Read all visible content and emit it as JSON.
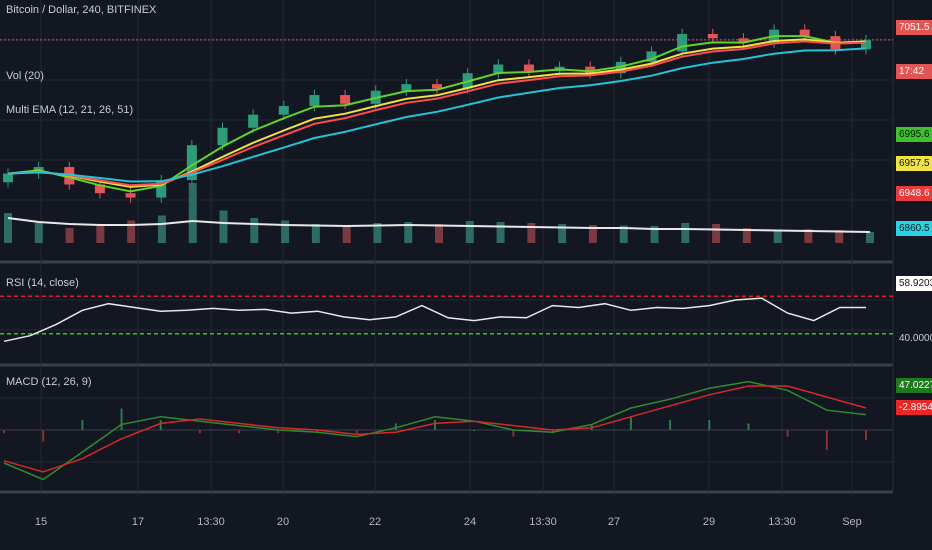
{
  "chart_data": [
    {
      "type": "candlestick",
      "title": "Bitcoin / Dollar, 240, BITFINEX",
      "last_price": "7051.5",
      "countdown": "17:42",
      "ohlc_close": [
        6745,
        6760,
        6720,
        6700,
        6690,
        6730,
        6810,
        6850,
        6880,
        6900,
        6925,
        6905,
        6935,
        6950,
        6940,
        6975,
        6995,
        6980,
        6990,
        6975,
        7001,
        7025,
        7065,
        7055,
        7045,
        7075,
        7060,
        7030,
        7051
      ],
      "volume": {
        "label": "Vol (20)",
        "values": [
          60,
          40,
          30,
          35,
          45,
          55,
          120,
          65,
          50,
          45,
          38,
          36,
          40,
          42,
          38,
          44,
          42,
          40,
          38,
          36,
          35,
          34,
          40,
          38,
          30,
          25,
          28,
          26,
          22
        ],
        "ma": [
          50,
          42,
          38,
          36,
          36,
          38,
          44,
          40,
          38,
          36,
          35,
          34,
          35,
          36,
          35,
          34,
          33,
          32,
          31,
          30,
          30,
          28,
          28,
          27,
          26,
          25,
          24,
          23,
          22
        ]
      },
      "multi_ema": {
        "label": "Multi EMA (12, 21, 26, 51)",
        "colors": [
          "#5fd32b",
          "#f0e442",
          "#ff4d4d",
          "#25c3d8"
        ],
        "tags": [
          "6995.6",
          "6957.5",
          "6948.6",
          "6860.5"
        ]
      }
    },
    {
      "type": "line",
      "label": "RSI (14, close)",
      "value_tag": "58.9203",
      "level_tag": "40.0000",
      "values": [
        22,
        28,
        40,
        55,
        62,
        58,
        54,
        55,
        57,
        55,
        56,
        52,
        54,
        48,
        45,
        48,
        60,
        47,
        44,
        48,
        47,
        60,
        58,
        62,
        55,
        58,
        57,
        60,
        66,
        68,
        52,
        44,
        58,
        58
      ],
      "overbought": 70,
      "oversold": 30
    },
    {
      "type": "line",
      "label": "MACD (12, 26, 9)",
      "value_tags": [
        "47.0227",
        "-2.8954"
      ],
      "macd": [
        -30,
        -45,
        -20,
        5,
        12,
        8,
        4,
        0,
        -2,
        -6,
        2,
        12,
        8,
        0,
        -2,
        5,
        20,
        28,
        38,
        44,
        36,
        18,
        14
      ],
      "signal": [
        -28,
        -38,
        -26,
        -8,
        6,
        10,
        6,
        2,
        0,
        -4,
        -2,
        6,
        8,
        4,
        0,
        2,
        12,
        22,
        32,
        40,
        40,
        30,
        20
      ]
    }
  ],
  "x_axis": {
    "ticks": [
      "15",
      "17",
      "13:30",
      "20",
      "22",
      "24",
      "13:30",
      "27",
      "29",
      "13:30",
      "Sep"
    ]
  }
}
